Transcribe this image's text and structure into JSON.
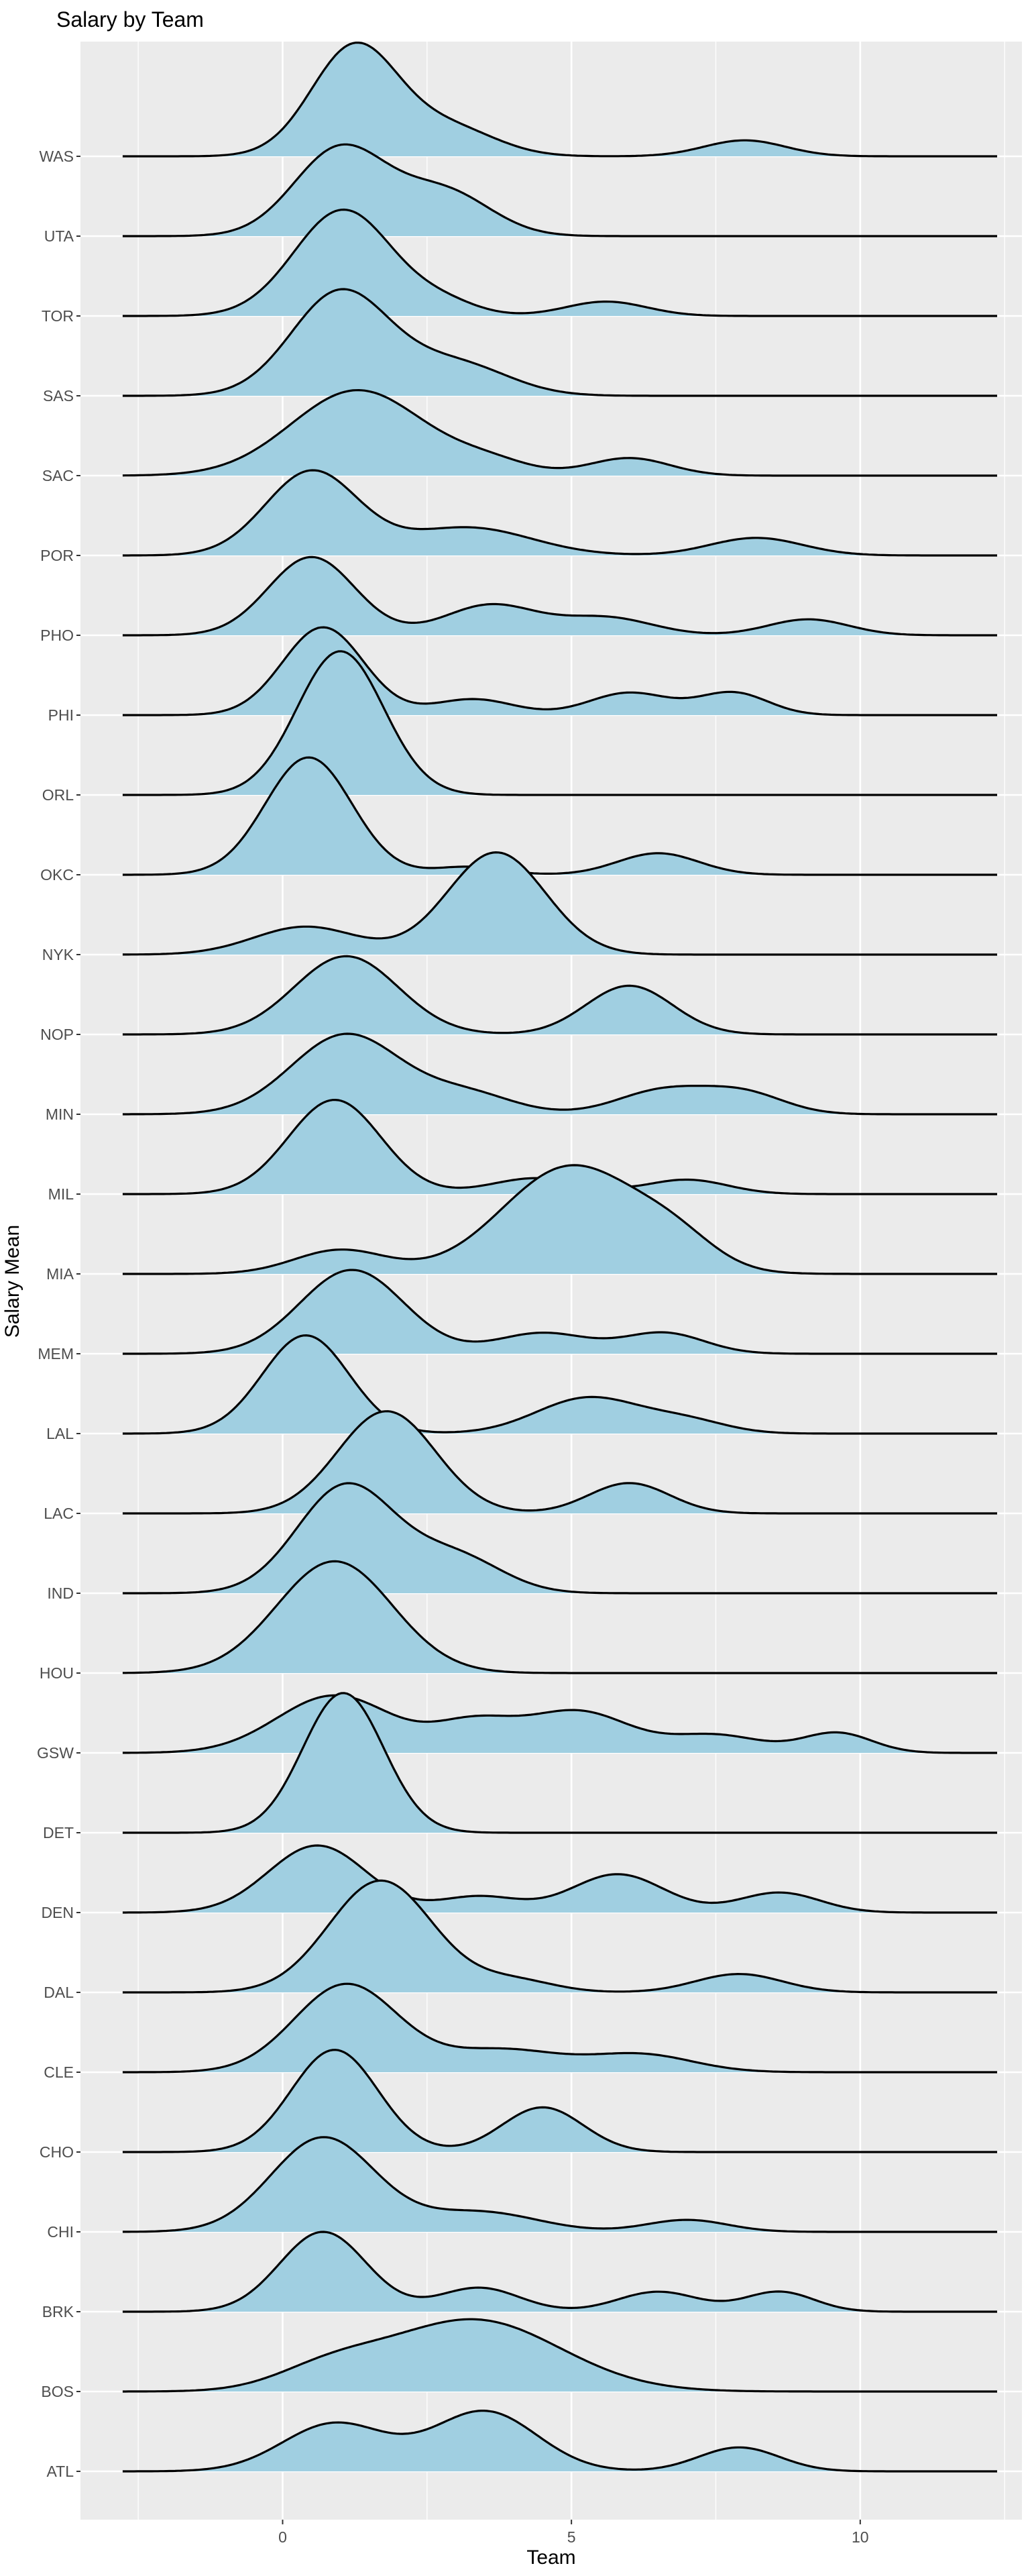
{
  "chart_data": {
    "type": "ridgeline",
    "title": "Salary by Team",
    "xlabel": "Team",
    "ylabel": "Salary Mean",
    "xlim": [
      -3.5,
      12.8
    ],
    "x_range_of_curves": [
      -2.77,
      12.37
    ],
    "x_ticks": [
      0,
      5,
      10
    ],
    "x_tick_labels": [
      "0",
      "5",
      "10"
    ],
    "grid": true,
    "colors": {
      "fill": "#A0CFE1",
      "line": "#000000",
      "panel": "#EBEBEB",
      "grid": "#FFFFFF"
    },
    "height_units": "ridge row spacing",
    "mode_format": [
      "x",
      "height",
      "width"
    ],
    "series": [
      {
        "name": "WAS",
        "modes": [
          [
            1.25,
            1.38,
            0.75
          ],
          [
            2.9,
            0.35,
            0.8
          ],
          [
            8.0,
            0.2,
            0.7
          ]
        ]
      },
      {
        "name": "UTA",
        "modes": [
          [
            1.0,
            1.1,
            0.8
          ],
          [
            2.8,
            0.55,
            0.8
          ]
        ]
      },
      {
        "name": "TOR",
        "modes": [
          [
            1.05,
            1.33,
            0.85
          ],
          [
            2.8,
            0.15,
            0.6
          ],
          [
            5.6,
            0.18,
            0.7
          ]
        ]
      },
      {
        "name": "SAS",
        "modes": [
          [
            1.0,
            1.3,
            0.85
          ],
          [
            3.0,
            0.4,
            0.9
          ]
        ]
      },
      {
        "name": "SAC",
        "modes": [
          [
            1.3,
            1.07,
            1.15
          ],
          [
            3.6,
            0.15,
            0.7
          ],
          [
            6.0,
            0.22,
            0.7
          ]
        ]
      },
      {
        "name": "POR",
        "modes": [
          [
            0.5,
            1.05,
            0.8
          ],
          [
            3.2,
            0.35,
            1.1
          ],
          [
            8.2,
            0.22,
            0.8
          ]
        ]
      },
      {
        "name": "PHO",
        "modes": [
          [
            0.5,
            0.98,
            0.75
          ],
          [
            3.6,
            0.38,
            0.8
          ],
          [
            5.6,
            0.22,
            0.8
          ],
          [
            9.1,
            0.2,
            0.7
          ]
        ]
      },
      {
        "name": "PHI",
        "modes": [
          [
            0.7,
            1.1,
            0.7
          ],
          [
            3.3,
            0.2,
            0.7
          ],
          [
            6.0,
            0.28,
            0.7
          ],
          [
            7.8,
            0.28,
            0.6
          ]
        ]
      },
      {
        "name": "ORL",
        "modes": [
          [
            1.0,
            1.8,
            0.75
          ]
        ]
      },
      {
        "name": "OKC",
        "modes": [
          [
            0.45,
            1.47,
            0.75
          ],
          [
            3.2,
            0.1,
            0.6
          ],
          [
            6.5,
            0.27,
            0.7
          ]
        ]
      },
      {
        "name": "NYK",
        "modes": [
          [
            3.7,
            1.28,
            0.85
          ],
          [
            0.4,
            0.35,
            0.9
          ]
        ]
      },
      {
        "name": "NOP",
        "modes": [
          [
            1.1,
            0.98,
            0.9
          ],
          [
            6.0,
            0.61,
            0.75
          ]
        ]
      },
      {
        "name": "MIN",
        "modes": [
          [
            1.1,
            1.0,
            0.95
          ],
          [
            3.2,
            0.25,
            0.8
          ],
          [
            6.6,
            0.3,
            0.8
          ],
          [
            8.0,
            0.25,
            0.7
          ]
        ]
      },
      {
        "name": "MIL",
        "modes": [
          [
            0.9,
            1.18,
            0.8
          ],
          [
            4.4,
            0.2,
            0.8
          ],
          [
            7.0,
            0.18,
            0.7
          ]
        ]
      },
      {
        "name": "MIA",
        "modes": [
          [
            5.0,
            1.35,
            1.2
          ],
          [
            1.0,
            0.3,
            0.8
          ],
          [
            6.8,
            0.3,
            0.7
          ]
        ]
      },
      {
        "name": "MEM",
        "modes": [
          [
            1.2,
            1.05,
            0.9
          ],
          [
            4.5,
            0.26,
            0.8
          ],
          [
            6.6,
            0.26,
            0.7
          ]
        ]
      },
      {
        "name": "LAL",
        "modes": [
          [
            0.4,
            1.23,
            0.75
          ],
          [
            5.3,
            0.45,
            0.9
          ],
          [
            7.0,
            0.15,
            0.7
          ]
        ]
      },
      {
        "name": "LAC",
        "modes": [
          [
            1.8,
            1.28,
            0.85
          ],
          [
            6.0,
            0.38,
            0.7
          ]
        ]
      },
      {
        "name": "IND",
        "modes": [
          [
            1.1,
            1.35,
            0.85
          ],
          [
            3.0,
            0.45,
            0.8
          ]
        ]
      },
      {
        "name": "HOU",
        "modes": [
          [
            0.9,
            1.4,
            1.0
          ]
        ]
      },
      {
        "name": "GSW",
        "modes": [
          [
            0.9,
            0.72,
            1.0
          ],
          [
            3.3,
            0.35,
            0.7
          ],
          [
            5.1,
            0.52,
            0.9
          ],
          [
            7.5,
            0.22,
            0.8
          ],
          [
            9.6,
            0.25,
            0.6
          ]
        ]
      },
      {
        "name": "DET",
        "modes": [
          [
            1.05,
            1.75,
            0.7
          ]
        ]
      },
      {
        "name": "DEN",
        "modes": [
          [
            0.6,
            0.84,
            0.85
          ],
          [
            3.4,
            0.2,
            0.7
          ],
          [
            5.8,
            0.48,
            0.8
          ],
          [
            8.6,
            0.25,
            0.7
          ]
        ]
      },
      {
        "name": "DAL",
        "modes": [
          [
            1.7,
            1.4,
            0.9
          ],
          [
            4.0,
            0.15,
            0.7
          ],
          [
            7.9,
            0.23,
            0.75
          ]
        ]
      },
      {
        "name": "CLE",
        "modes": [
          [
            1.1,
            1.1,
            0.9
          ],
          [
            3.8,
            0.28,
            1.0
          ],
          [
            6.2,
            0.22,
            0.9
          ]
        ]
      },
      {
        "name": "CHO",
        "modes": [
          [
            0.9,
            1.28,
            0.75
          ],
          [
            4.5,
            0.56,
            0.7
          ]
        ]
      },
      {
        "name": "CHI",
        "modes": [
          [
            0.7,
            1.18,
            0.9
          ],
          [
            3.4,
            0.25,
            1.0
          ],
          [
            7.0,
            0.15,
            0.7
          ]
        ]
      },
      {
        "name": "BRK",
        "modes": [
          [
            0.7,
            1.0,
            0.75
          ],
          [
            3.4,
            0.3,
            0.7
          ],
          [
            6.5,
            0.25,
            0.7
          ],
          [
            8.6,
            0.25,
            0.6
          ]
        ]
      },
      {
        "name": "BOS",
        "modes": [
          [
            3.3,
            0.9,
            1.5
          ],
          [
            0.8,
            0.25,
            0.9
          ]
        ]
      },
      {
        "name": "ATL",
        "modes": [
          [
            3.5,
            0.75,
            0.9
          ],
          [
            0.9,
            0.6,
            0.9
          ],
          [
            7.9,
            0.3,
            0.7
          ]
        ]
      }
    ]
  }
}
